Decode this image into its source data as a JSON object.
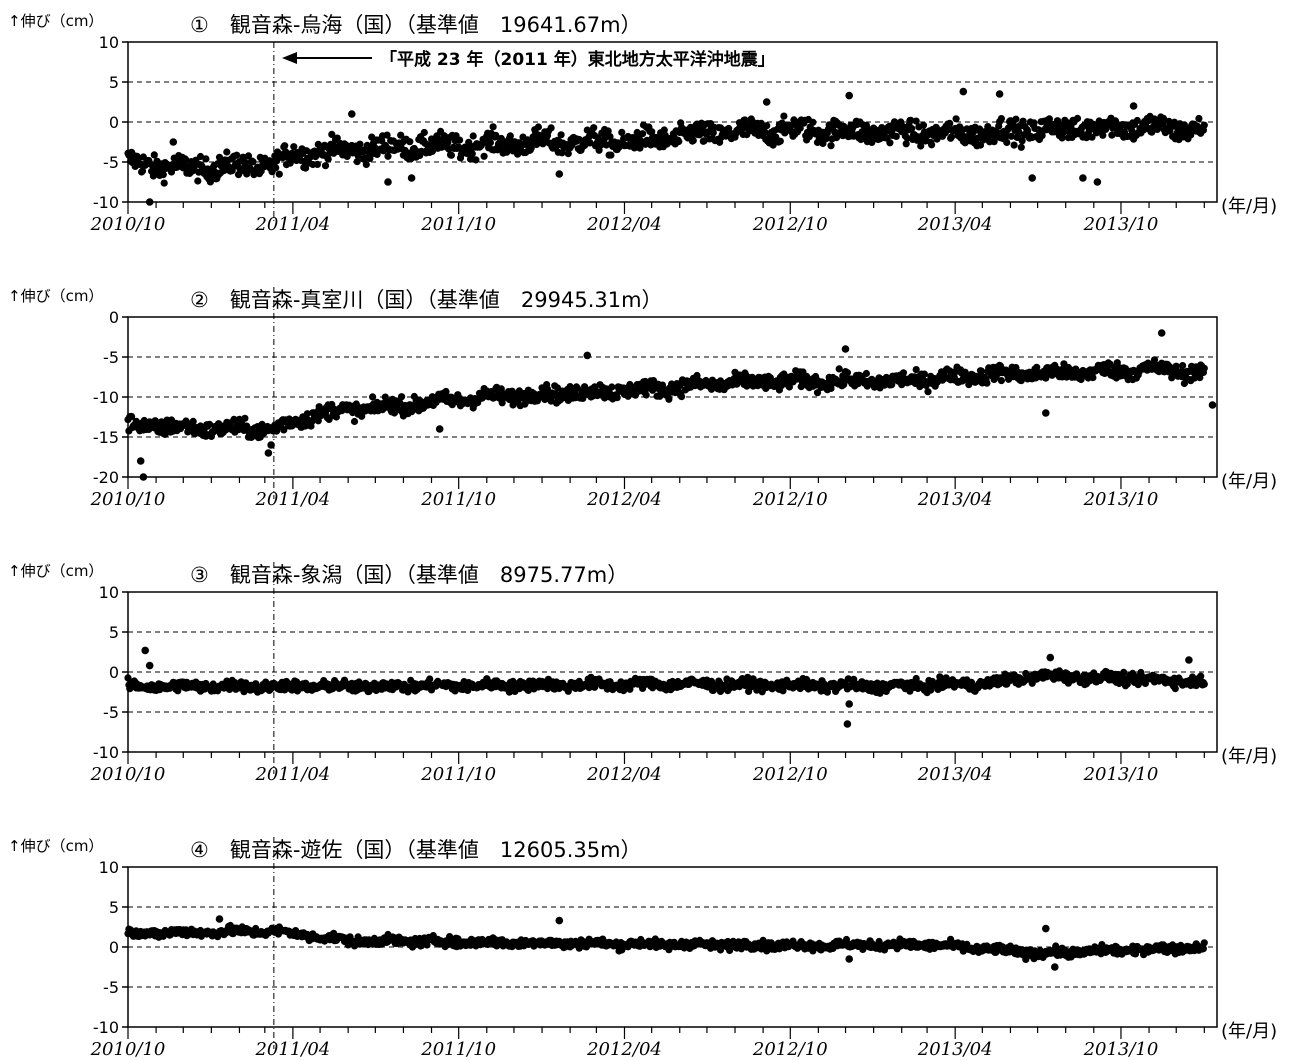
{
  "figure": {
    "y_axis_label": "↑伸び（cm）",
    "x_unit_label": "(年/月)",
    "x_tick_labels": [
      "2010/10",
      "2011/04",
      "2011/10",
      "2012/04",
      "2012/10",
      "2013/04",
      "2013/10"
    ],
    "earthquake_annotation": "「平成 23 年（2011 年）東北地方太平洋沖地震」"
  },
  "chart_data": [
    {
      "type": "scatter",
      "title": "①　観音森-烏海（国）（基準値　19641.67m）",
      "ylabel": "↑伸び（cm）",
      "xlabel": "(年/月)",
      "x_range": [
        "2010/10",
        "2014/01"
      ],
      "ylim": [
        -10,
        10
      ],
      "y_ticks": [
        10,
        5,
        0,
        -5,
        -10
      ],
      "grid": "dashed horizontal at ±5",
      "event_line_date": "2011/03/11",
      "series": [
        {
          "keypoints": [
            [
              "2010/10/01",
              -5
            ],
            [
              "2010/12/01",
              -5.8
            ],
            [
              "2011/02/01",
              -5.5
            ],
            [
              "2011/03/10",
              -5.5
            ],
            [
              "2011/04/01",
              -4
            ],
            [
              "2011/06/01",
              -3.5
            ],
            [
              "2011/08/01",
              -3
            ],
            [
              "2011/10/01",
              -3
            ],
            [
              "2012/01/01",
              -2.5
            ],
            [
              "2012/04/01",
              -2.5
            ],
            [
              "2012/07/01",
              -1.5
            ],
            [
              "2012/10/01",
              -1
            ],
            [
              "2013/01/01",
              -1.2
            ],
            [
              "2013/04/01",
              -1.5
            ],
            [
              "2013/07/01",
              -1
            ],
            [
              "2013/10/01",
              -0.5
            ],
            [
              "2014/01/01",
              -1
            ]
          ],
          "noise": 1.3,
          "outliers": [
            [
              "2010/10/25",
              -10
            ],
            [
              "2010/11/20",
              -2.5
            ],
            [
              "2011/06/05",
              1
            ],
            [
              "2011/07/15",
              -7.5
            ],
            [
              "2011/08/10",
              -7
            ],
            [
              "2012/01/20",
              -6.5
            ],
            [
              "2012/09/05",
              2.5
            ],
            [
              "2012/12/05",
              3.3
            ],
            [
              "2013/04/10",
              3.8
            ],
            [
              "2013/05/20",
              3.5
            ],
            [
              "2013/06/25",
              -7
            ],
            [
              "2013/08/20",
              -7
            ],
            [
              "2013/09/05",
              -7.5
            ],
            [
              "2013/10/15",
              2
            ]
          ]
        }
      ]
    },
    {
      "type": "scatter",
      "title": "②　観音森-真室川（国）（基準値　29945.31m）",
      "ylabel": "↑伸び（cm）",
      "xlabel": "(年/月)",
      "x_range": [
        "2010/10",
        "2014/01"
      ],
      "ylim": [
        -20,
        0
      ],
      "y_ticks": [
        0,
        -5,
        -10,
        -15,
        -20
      ],
      "grid": "dashed horizontal at -5, -10, -15",
      "event_line_date": "2011/03/11",
      "series": [
        {
          "keypoints": [
            [
              "2010/10/01",
              -13.5
            ],
            [
              "2011/01/01",
              -14
            ],
            [
              "2011/03/10",
              -14
            ],
            [
              "2011/05/01",
              -12
            ],
            [
              "2011/08/01",
              -11
            ],
            [
              "2011/11/01",
              -10
            ],
            [
              "2012/02/01",
              -9.5
            ],
            [
              "2012/05/01",
              -9
            ],
            [
              "2012/08/01",
              -8.2
            ],
            [
              "2012/11/01",
              -8
            ],
            [
              "2013/02/01",
              -8
            ],
            [
              "2013/05/01",
              -7.2
            ],
            [
              "2013/08/01",
              -7
            ],
            [
              "2013/11/01",
              -6.5
            ],
            [
              "2014/01/01",
              -7
            ]
          ],
          "noise": 0.9,
          "outliers": [
            [
              "2010/10/15",
              -18
            ],
            [
              "2010/10/18",
              -20
            ],
            [
              "2011/03/05",
              -17
            ],
            [
              "2011/03/08",
              -16
            ],
            [
              "2011/09/10",
              -14
            ],
            [
              "2012/02/20",
              -4.8
            ],
            [
              "2012/12/01",
              -4
            ],
            [
              "2013/07/10",
              -12
            ],
            [
              "2013/11/15",
              -2
            ],
            [
              "2014/01/10",
              -11
            ]
          ]
        }
      ]
    },
    {
      "type": "scatter",
      "title": "③　観音森-象潟（国）（基準値　8975.77m）",
      "ylabel": "↑伸び（cm）",
      "xlabel": "(年/月)",
      "x_range": [
        "2010/10",
        "2014/01"
      ],
      "ylim": [
        -10,
        10
      ],
      "y_ticks": [
        10,
        5,
        0,
        -5,
        -10
      ],
      "grid": "dashed horizontal at ±5",
      "event_line_date": "2011/03/11",
      "series": [
        {
          "keypoints": [
            [
              "2010/10/01",
              -1.8
            ],
            [
              "2011/06/01",
              -1.8
            ],
            [
              "2012/06/01",
              -1.5
            ],
            [
              "2013/01/01",
              -1.8
            ],
            [
              "2013/05/01",
              -1.5
            ],
            [
              "2013/07/01",
              -0.5
            ],
            [
              "2013/10/01",
              -0.8
            ],
            [
              "2014/01/01",
              -1.2
            ]
          ],
          "noise": 0.6,
          "outliers": [
            [
              "2010/10/20",
              2.7
            ],
            [
              "2010/10/25",
              0.8
            ],
            [
              "2012/12/03",
              -6.5
            ],
            [
              "2012/12/05",
              -4
            ],
            [
              "2013/07/15",
              1.8
            ],
            [
              "2013/12/15",
              1.5
            ]
          ]
        }
      ]
    },
    {
      "type": "scatter",
      "title": "④　観音森-遊佐（国）（基準値　12605.35m）",
      "ylabel": "↑伸び（cm）",
      "xlabel": "(年/月)",
      "x_range": [
        "2010/10",
        "2014/01"
      ],
      "ylim": [
        -10,
        10
      ],
      "y_ticks": [
        10,
        5,
        0,
        -5,
        -10
      ],
      "grid": "dashed horizontal at ±5",
      "event_line_date": "2011/03/11",
      "series": [
        {
          "keypoints": [
            [
              "2010/10/01",
              1.7
            ],
            [
              "2011/03/10",
              2
            ],
            [
              "2011/06/01",
              0.8
            ],
            [
              "2012/01/01",
              0.5
            ],
            [
              "2012/10/01",
              0.2
            ],
            [
              "2013/03/01",
              0.3
            ],
            [
              "2013/07/01",
              -0.8
            ],
            [
              "2014/01/01",
              0
            ]
          ],
          "noise": 0.5,
          "outliers": [
            [
              "2011/01/10",
              3.5
            ],
            [
              "2012/01/20",
              3.3
            ],
            [
              "2012/12/05",
              -1.5
            ],
            [
              "2013/07/10",
              2.3
            ],
            [
              "2013/07/20",
              -2.5
            ]
          ]
        }
      ]
    }
  ]
}
